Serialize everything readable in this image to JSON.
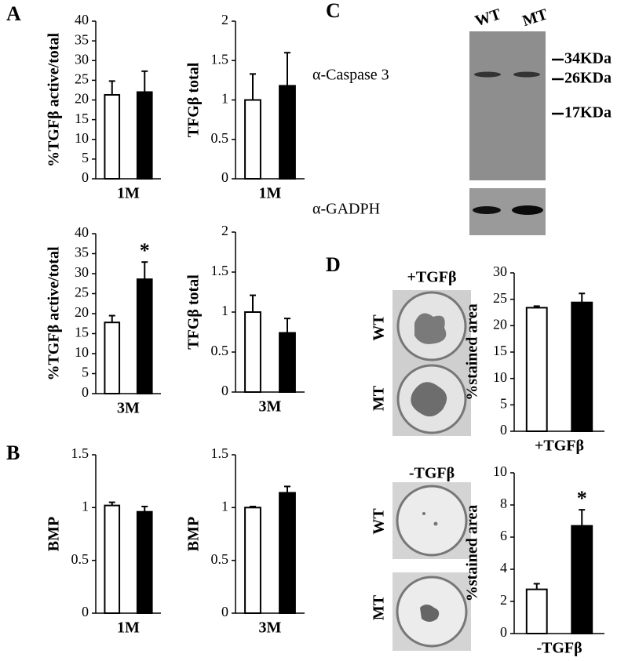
{
  "panel_labels": [
    "A",
    "B",
    "C",
    "D"
  ],
  "blot": {
    "lanes": [
      "WT",
      "MT"
    ],
    "rows": [
      "α-Caspase 3",
      "α-GADPH"
    ],
    "markers": [
      "34KDa",
      "26KDa",
      "17KDa"
    ]
  },
  "plates": {
    "titles": [
      "+TGFβ",
      "-TGFβ"
    ],
    "rows": [
      "WT",
      "MT"
    ]
  },
  "chart_data": [
    {
      "type": "bar",
      "ylabel": "%TGFβ active/total",
      "xlabel": "1M",
      "categories": [
        null,
        null
      ],
      "values": [
        21.3,
        22
      ],
      "errors": [
        3.5,
        5.3
      ],
      "colors": [
        "#ffffff",
        "#000000"
      ],
      "ylim": [
        0,
        40
      ],
      "yticks": [
        0,
        5,
        10,
        15,
        20,
        25,
        30,
        35,
        40
      ]
    },
    {
      "type": "bar",
      "ylabel": "TFGβ total",
      "xlabel": "1M",
      "categories": [
        null,
        null
      ],
      "values": [
        1.0,
        1.18
      ],
      "errors": [
        0.33,
        0.42
      ],
      "colors": [
        "#ffffff",
        "#000000"
      ],
      "ylim": [
        0,
        2
      ],
      "yticks": [
        0,
        0.5,
        1,
        1.5,
        2
      ]
    },
    {
      "type": "bar",
      "ylabel": "%TGFβ active/total",
      "xlabel": "3M",
      "categories": [
        null,
        null
      ],
      "values": [
        17.8,
        28.6
      ],
      "errors": [
        1.7,
        4.3
      ],
      "colors": [
        "#ffffff",
        "#000000"
      ],
      "ylim": [
        0,
        40
      ],
      "yticks": [
        0,
        5,
        10,
        15,
        20,
        25,
        30,
        35,
        40
      ],
      "annotation": "*"
    },
    {
      "type": "bar",
      "ylabel": "TFGβ total",
      "xlabel": "3M",
      "categories": [
        null,
        null
      ],
      "values": [
        1.0,
        0.74
      ],
      "errors": [
        0.21,
        0.18
      ],
      "colors": [
        "#ffffff",
        "#000000"
      ],
      "ylim": [
        0,
        2
      ],
      "yticks": [
        0,
        0.5,
        1,
        1.5,
        2
      ]
    },
    {
      "type": "bar",
      "ylabel": "BMP",
      "xlabel": "1M",
      "categories": [
        null,
        null
      ],
      "values": [
        1.02,
        0.96
      ],
      "errors": [
        0.03,
        0.05
      ],
      "colors": [
        "#ffffff",
        "#000000"
      ],
      "ylim": [
        0,
        1.5
      ],
      "yticks": [
        0,
        0.5,
        1,
        1.5
      ]
    },
    {
      "type": "bar",
      "ylabel": "BMP",
      "xlabel": "3M",
      "categories": [
        null,
        null
      ],
      "values": [
        1.0,
        1.14
      ],
      "errors": [
        0.01,
        0.06
      ],
      "colors": [
        "#ffffff",
        "#000000"
      ],
      "ylim": [
        0,
        1.5
      ],
      "yticks": [
        0,
        0.5,
        1,
        1.5
      ]
    },
    {
      "type": "bar",
      "ylabel": "%stained area",
      "xlabel": "+TGFβ",
      "categories": [
        null,
        null
      ],
      "values": [
        23.4,
        24.4
      ],
      "errors": [
        0.3,
        1.7
      ],
      "colors": [
        "#ffffff",
        "#000000"
      ],
      "ylim": [
        0,
        30
      ],
      "yticks": [
        0,
        5,
        10,
        15,
        20,
        25,
        30
      ]
    },
    {
      "type": "bar",
      "ylabel": "%stained area",
      "xlabel": "-TGFβ",
      "categories": [
        null,
        null
      ],
      "values": [
        2.75,
        6.7
      ],
      "errors": [
        0.35,
        1.0
      ],
      "colors": [
        "#ffffff",
        "#000000"
      ],
      "ylim": [
        0,
        10
      ],
      "yticks": [
        0,
        2,
        4,
        6,
        8,
        10
      ],
      "annotation": "*"
    }
  ]
}
